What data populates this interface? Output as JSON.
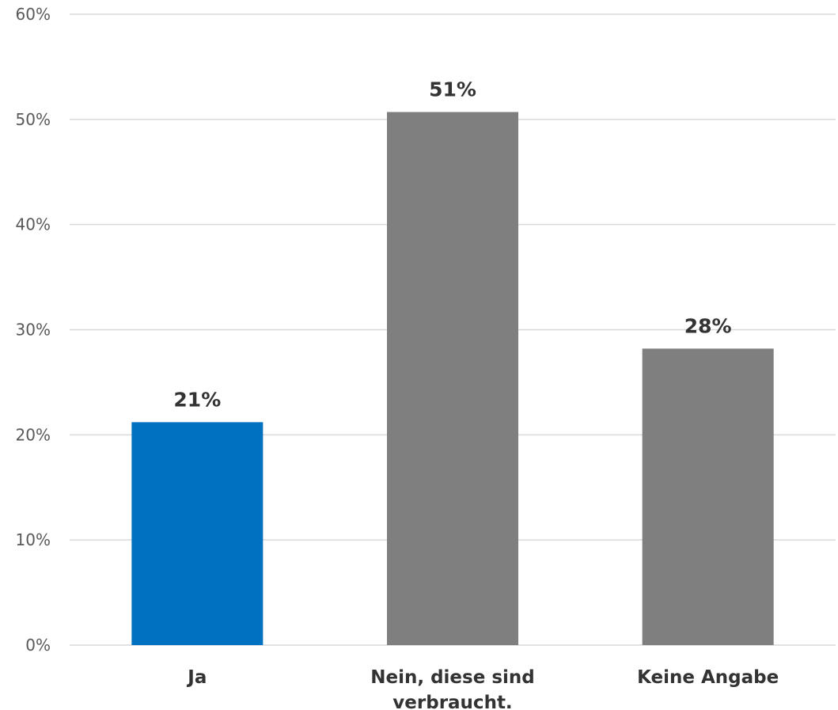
{
  "chart_data": {
    "type": "bar",
    "categories": [
      "Ja",
      "Nein, diese sind verbraucht.",
      "Keine Angabe"
    ],
    "category_lines": [
      [
        "Ja"
      ],
      [
        "Nein, diese sind",
        "verbraucht."
      ],
      [
        "Keine Angabe"
      ]
    ],
    "values": [
      21.2,
      50.7,
      28.2
    ],
    "data_labels": [
      "21%",
      "51%",
      "28%"
    ],
    "bar_colors": [
      "#0070c0",
      "#7f7f7f",
      "#7f7f7f"
    ],
    "title": "",
    "xlabel": "",
    "ylabel": "",
    "ylim": [
      0,
      60
    ],
    "yticks": [
      0,
      10,
      20,
      30,
      40,
      50,
      60
    ],
    "ytick_labels": [
      "0%",
      "10%",
      "20%",
      "30%",
      "40%",
      "50%",
      "60%"
    ],
    "grid": true,
    "legend": "none"
  }
}
